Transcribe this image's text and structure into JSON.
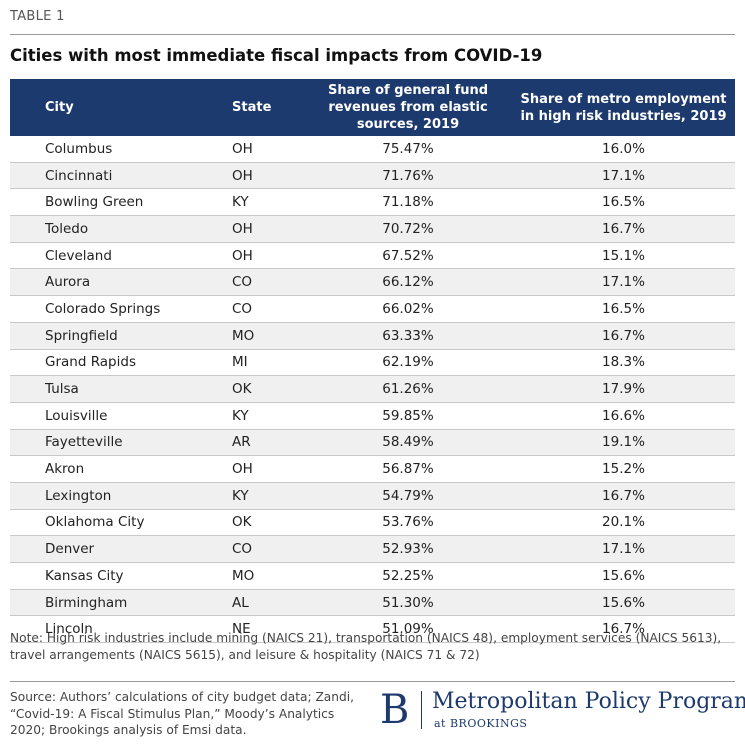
{
  "header": {
    "label": "TABLE 1",
    "title": "Cities with most immediate fiscal impacts from COVID-19"
  },
  "chart_data": {
    "type": "table",
    "title": "Cities with most immediate fiscal impacts from COVID-19",
    "columns": [
      "City",
      "State",
      "Share of general fund revenues from elastic sources, 2019",
      "Share of metro employment in high risk industries, 2019"
    ],
    "rows": [
      {
        "city": "Columbus",
        "state": "OH",
        "revenue_share": "75.47%",
        "employment_share": "16.0%"
      },
      {
        "city": "Cincinnati",
        "state": "OH",
        "revenue_share": "71.76%",
        "employment_share": "17.1%"
      },
      {
        "city": "Bowling Green",
        "state": "KY",
        "revenue_share": "71.18%",
        "employment_share": "16.5%"
      },
      {
        "city": "Toledo",
        "state": "OH",
        "revenue_share": "70.72%",
        "employment_share": "16.7%"
      },
      {
        "city": "Cleveland",
        "state": "OH",
        "revenue_share": "67.52%",
        "employment_share": "15.1%"
      },
      {
        "city": "Aurora",
        "state": "CO",
        "revenue_share": "66.12%",
        "employment_share": "17.1%"
      },
      {
        "city": "Colorado Springs",
        "state": "CO",
        "revenue_share": "66.02%",
        "employment_share": "16.5%"
      },
      {
        "city": "Springfield",
        "state": "MO",
        "revenue_share": "63.33%",
        "employment_share": "16.7%"
      },
      {
        "city": "Grand Rapids",
        "state": "MI",
        "revenue_share": "62.19%",
        "employment_share": "18.3%"
      },
      {
        "city": "Tulsa",
        "state": "OK",
        "revenue_share": "61.26%",
        "employment_share": "17.9%"
      },
      {
        "city": "Louisville",
        "state": "KY",
        "revenue_share": "59.85%",
        "employment_share": "16.6%"
      },
      {
        "city": "Fayetteville",
        "state": "AR",
        "revenue_share": "58.49%",
        "employment_share": "19.1%"
      },
      {
        "city": "Akron",
        "state": "OH",
        "revenue_share": "56.87%",
        "employment_share": "15.2%"
      },
      {
        "city": "Lexington",
        "state": "KY",
        "revenue_share": "54.79%",
        "employment_share": "16.7%"
      },
      {
        "city": "Oklahoma City",
        "state": "OK",
        "revenue_share": "53.76%",
        "employment_share": "20.1%"
      },
      {
        "city": "Denver",
        "state": "CO",
        "revenue_share": "52.93%",
        "employment_share": "17.1%"
      },
      {
        "city": "Kansas City",
        "state": "MO",
        "revenue_share": "52.25%",
        "employment_share": "15.6%"
      },
      {
        "city": "Birmingham",
        "state": "AL",
        "revenue_share": "51.30%",
        "employment_share": "15.6%"
      },
      {
        "city": "Lincoln",
        "state": "NE",
        "revenue_share": "51.09%",
        "employment_share": "16.7%"
      }
    ]
  },
  "footer": {
    "note": "Note: High risk industries include mining (NAICS 21), transportation (NAICS 48), employment services (NAICS 5613), travel arrangements (NAICS 5615), and leisure & hospitality (NAICS 71 & 72)",
    "source": "Source: Authors’ calculations of city budget data; Zandi, “Covid-19: A Fiscal Stimulus Plan,” Moody’s Analytics 2020; Brookings analysis of Emsi data.",
    "logo_letter": "B",
    "logo_program": "Metropolitan Policy Program",
    "logo_at": "at BROOKINGS"
  },
  "colors": {
    "header_bg": "#1d3a6e",
    "row_stripe": "#f0f0f0"
  }
}
